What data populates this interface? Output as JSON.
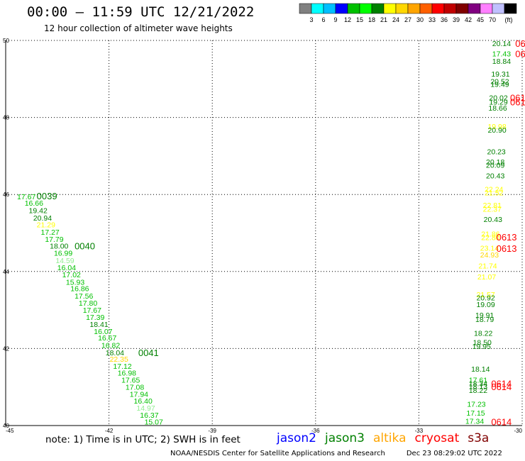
{
  "header": {
    "title": "00:00 – 11:59 UTC 12/21/2022",
    "subtitle": "12 hour collection of altimeter wave heights"
  },
  "color_scale": {
    "colors": [
      "#808080",
      "#00ffff",
      "#00bfff",
      "#0000ff",
      "#00c000",
      "#00ff00",
      "#008000",
      "#ffff00",
      "#ffd700",
      "#ffa500",
      "#ff6000",
      "#ff0000",
      "#c00000",
      "#800000",
      "#800080",
      "#ff80ff",
      "#c0c0ff",
      "#000000"
    ],
    "labels": [
      "3",
      "6",
      "9",
      "12",
      "15",
      "18",
      "21",
      "24",
      "27",
      "30",
      "33",
      "36",
      "39",
      "42",
      "45",
      "70"
    ],
    "unit": "(ft)"
  },
  "chart_data": {
    "type": "scatter",
    "title": "00:00 – 11:59 UTC 12/21/2022",
    "subtitle": "12 hour collection of altimeter wave heights",
    "xlim": [
      -45,
      -30
    ],
    "ylim": [
      40,
      50
    ],
    "x_ticks": [
      "-45",
      "-42",
      "-39",
      "-36",
      "-33",
      "-30"
    ],
    "y_ticks": [
      "40",
      "42",
      "44",
      "46",
      "48",
      "50"
    ],
    "grid": true,
    "series": [
      {
        "name": "jason3",
        "color": "#008000",
        "points": [
          {
            "lon": -44.67,
            "lat": 45.95,
            "v": "17.67",
            "c": "#00c000"
          },
          {
            "lon": -44.45,
            "lat": 45.78,
            "v": "16.66",
            "c": "#00c000"
          },
          {
            "lon": -44.33,
            "lat": 45.59,
            "v": "19.42",
            "c": "#008000"
          },
          {
            "lon": -44.2,
            "lat": 45.4,
            "v": "20.94",
            "c": "#008000"
          },
          {
            "lon": -44.1,
            "lat": 45.22,
            "v": "21.29",
            "c": "#ffff00"
          },
          {
            "lon": -43.98,
            "lat": 45.03,
            "v": "17.27",
            "c": "#00c000"
          },
          {
            "lon": -43.86,
            "lat": 44.84,
            "v": "17.79",
            "c": "#00c000"
          },
          {
            "lon": -43.72,
            "lat": 44.67,
            "v": "18.00",
            "c": "#008000"
          },
          {
            "lon": -43.6,
            "lat": 44.48,
            "v": "16.99",
            "c": "#00c000"
          },
          {
            "lon": -43.55,
            "lat": 44.29,
            "v": "14.59",
            "c": "#90ee90"
          },
          {
            "lon": -43.5,
            "lat": 44.11,
            "v": "16.04",
            "c": "#00c000"
          },
          {
            "lon": -43.36,
            "lat": 43.92,
            "v": "17.02",
            "c": "#00c000"
          },
          {
            "lon": -43.25,
            "lat": 43.73,
            "v": "15.93",
            "c": "#00c000"
          },
          {
            "lon": -43.12,
            "lat": 43.56,
            "v": "16.86",
            "c": "#00c000"
          },
          {
            "lon": -43.0,
            "lat": 43.37,
            "v": "17.56",
            "c": "#00c000"
          },
          {
            "lon": -42.88,
            "lat": 43.19,
            "v": "17.80",
            "c": "#00c000"
          },
          {
            "lon": -42.76,
            "lat": 43.0,
            "v": "17.67",
            "c": "#00c000"
          },
          {
            "lon": -42.67,
            "lat": 42.82,
            "v": "17.39",
            "c": "#00c000"
          },
          {
            "lon": -42.56,
            "lat": 42.63,
            "v": "18.41",
            "c": "#008000"
          },
          {
            "lon": -42.44,
            "lat": 42.45,
            "v": "16.07",
            "c": "#00c000"
          },
          {
            "lon": -42.32,
            "lat": 42.28,
            "v": "16.67",
            "c": "#00c000"
          },
          {
            "lon": -42.22,
            "lat": 42.09,
            "v": "16.82",
            "c": "#00c000"
          },
          {
            "lon": -42.1,
            "lat": 41.9,
            "v": "18.04",
            "c": "#008000"
          },
          {
            "lon": -41.98,
            "lat": 41.73,
            "v": "22.35",
            "c": "#ffd700"
          },
          {
            "lon": -41.88,
            "lat": 41.55,
            "v": "17.12",
            "c": "#00c000"
          },
          {
            "lon": -41.75,
            "lat": 41.37,
            "v": "16.98",
            "c": "#00c000"
          },
          {
            "lon": -41.64,
            "lat": 41.19,
            "v": "17.65",
            "c": "#00c000"
          },
          {
            "lon": -41.52,
            "lat": 41.0,
            "v": "17.08",
            "c": "#00c000"
          },
          {
            "lon": -41.4,
            "lat": 40.82,
            "v": "17.94",
            "c": "#00c000"
          },
          {
            "lon": -41.28,
            "lat": 40.64,
            "v": "16.40",
            "c": "#00c000"
          },
          {
            "lon": -41.2,
            "lat": 40.46,
            "v": "14.97",
            "c": "#90ee90"
          },
          {
            "lon": -41.1,
            "lat": 40.28,
            "v": "16.37",
            "c": "#00c000"
          },
          {
            "lon": -40.97,
            "lat": 40.1,
            "v": "15.07",
            "c": "#00c000"
          }
        ]
      },
      {
        "name": "jason3-track2",
        "color": "#008000",
        "points": [
          {
            "lon": -30.87,
            "lat": 49.93,
            "v": "20.14",
            "c": "#008000"
          },
          {
            "lon": -30.87,
            "lat": 49.66,
            "v": "17.43",
            "c": "#00c000"
          },
          {
            "lon": -30.87,
            "lat": 49.47,
            "v": "18.84",
            "c": "#008000"
          },
          {
            "lon": -30.9,
            "lat": 49.13,
            "v": "19.31",
            "c": "#008000"
          },
          {
            "lon": -30.92,
            "lat": 48.94,
            "v": "20.52",
            "c": "#008000"
          },
          {
            "lon": -30.92,
            "lat": 48.87,
            "v": "19.49",
            "c": "#008000"
          },
          {
            "lon": -30.96,
            "lat": 48.52,
            "v": "20.02",
            "c": "#008000"
          },
          {
            "lon": -30.96,
            "lat": 48.41,
            "v": "19.29",
            "c": "#008000"
          },
          {
            "lon": -30.98,
            "lat": 48.25,
            "v": "18.66",
            "c": "#008000"
          },
          {
            "lon": -31.0,
            "lat": 47.77,
            "v": "19.98",
            "c": "#ffff00"
          },
          {
            "lon": -31.0,
            "lat": 47.68,
            "v": "20.90",
            "c": "#008000"
          },
          {
            "lon": -31.02,
            "lat": 47.12,
            "v": "20.23",
            "c": "#008000"
          },
          {
            "lon": -31.05,
            "lat": 46.85,
            "v": "20.18",
            "c": "#008000"
          },
          {
            "lon": -31.05,
            "lat": 46.77,
            "v": "20.09",
            "c": "#008000"
          },
          {
            "lon": -31.05,
            "lat": 46.49,
            "v": "20.43",
            "c": "#008000"
          },
          {
            "lon": -31.09,
            "lat": 46.14,
            "v": "22.24",
            "c": "#ffff00"
          },
          {
            "lon": -31.09,
            "lat": 46.05,
            "v": "21.52",
            "c": "#ffff00"
          },
          {
            "lon": -31.14,
            "lat": 45.73,
            "v": "22.81",
            "c": "#ffff00"
          },
          {
            "lon": -31.14,
            "lat": 45.63,
            "v": "22.37",
            "c": "#ffff00"
          },
          {
            "lon": -31.12,
            "lat": 45.36,
            "v": "20.43",
            "c": "#008000"
          },
          {
            "lon": -31.19,
            "lat": 44.98,
            "v": "21.86",
            "c": "#ffff00"
          },
          {
            "lon": -31.19,
            "lat": 44.89,
            "v": "22.80",
            "c": "#ffff00"
          },
          {
            "lon": -31.22,
            "lat": 44.61,
            "v": "23.14",
            "c": "#ffff00"
          },
          {
            "lon": -31.22,
            "lat": 44.44,
            "v": "24.93",
            "c": "#ffd700"
          },
          {
            "lon": -31.27,
            "lat": 44.15,
            "v": "21.74",
            "c": "#ffff00"
          },
          {
            "lon": -31.3,
            "lat": 43.87,
            "v": "21.07",
            "c": "#ffff00"
          },
          {
            "lon": -31.33,
            "lat": 43.41,
            "v": "21.57",
            "c": "#ffff00"
          },
          {
            "lon": -31.33,
            "lat": 43.32,
            "v": "20.92",
            "c": "#008000"
          },
          {
            "lon": -31.33,
            "lat": 43.15,
            "v": "19.09",
            "c": "#008000"
          },
          {
            "lon": -31.36,
            "lat": 42.87,
            "v": "19.91",
            "c": "#008000"
          },
          {
            "lon": -31.36,
            "lat": 42.76,
            "v": "18.79",
            "c": "#008000"
          },
          {
            "lon": -31.4,
            "lat": 42.4,
            "v": "18.22",
            "c": "#008000"
          },
          {
            "lon": -31.43,
            "lat": 42.16,
            "v": "18.50",
            "c": "#008000"
          },
          {
            "lon": -31.45,
            "lat": 42.06,
            "v": "19.95",
            "c": "#008000"
          },
          {
            "lon": -31.48,
            "lat": 41.47,
            "v": "18.14",
            "c": "#008000"
          },
          {
            "lon": -31.55,
            "lat": 41.19,
            "v": "17.61",
            "c": "#00c000"
          },
          {
            "lon": -31.55,
            "lat": 41.1,
            "v": "18.34",
            "c": "#008000"
          },
          {
            "lon": -31.55,
            "lat": 41.02,
            "v": "18.13",
            "c": "#008000"
          },
          {
            "lon": -31.55,
            "lat": 40.92,
            "v": "18.22",
            "c": "#008000"
          },
          {
            "lon": -31.6,
            "lat": 40.56,
            "v": "17.23",
            "c": "#00c000"
          },
          {
            "lon": -31.62,
            "lat": 40.33,
            "v": "17.15",
            "c": "#00c000"
          },
          {
            "lon": -31.65,
            "lat": 40.12,
            "v": "17.34",
            "c": "#00c000"
          }
        ]
      }
    ],
    "time_labels": [
      {
        "text": "0039",
        "lon": -44.1,
        "lat": 45.97,
        "c": "#008000"
      },
      {
        "text": "0040",
        "lon": -43.0,
        "lat": 44.67,
        "c": "#008000"
      },
      {
        "text": "0041",
        "lon": -41.15,
        "lat": 41.9,
        "c": "#008000"
      },
      {
        "text": "06",
        "lon": -30.2,
        "lat": 49.93,
        "c": "#ff0000"
      },
      {
        "text": "06",
        "lon": -30.2,
        "lat": 49.66,
        "c": "#ff0000"
      },
      {
        "text": "061",
        "lon": -30.35,
        "lat": 48.52,
        "c": "#ff0000"
      },
      {
        "text": "061",
        "lon": -30.35,
        "lat": 48.41,
        "c": "#ff0000"
      },
      {
        "text": "0613",
        "lon": -30.75,
        "lat": 44.9,
        "c": "#ff0000"
      },
      {
        "text": "0613",
        "lon": -30.75,
        "lat": 44.6,
        "c": "#ff0000"
      },
      {
        "text": "0614",
        "lon": -30.9,
        "lat": 41.1,
        "c": "#ff0000"
      },
      {
        "text": "0614",
        "lon": -30.9,
        "lat": 41.01,
        "c": "#ff0000"
      },
      {
        "text": "0614",
        "lon": -30.9,
        "lat": 40.1,
        "c": "#ff0000"
      }
    ]
  },
  "footer": {
    "note": "note: 1) Time is in UTC; 2) SWH is in feet",
    "satellites": [
      {
        "name": "jason2",
        "color": "#0000ff"
      },
      {
        "name": "jason3",
        "color": "#008000"
      },
      {
        "name": "altika",
        "color": "#ffa500"
      },
      {
        "name": "cryosat",
        "color": "#ff0000"
      },
      {
        "name": "s3a",
        "color": "#800000"
      }
    ],
    "credit": "NOAA/NESDIS Center for Satellite Applications and Research",
    "timestamp": "Dec 23 08:29:02 UTC 2022"
  }
}
